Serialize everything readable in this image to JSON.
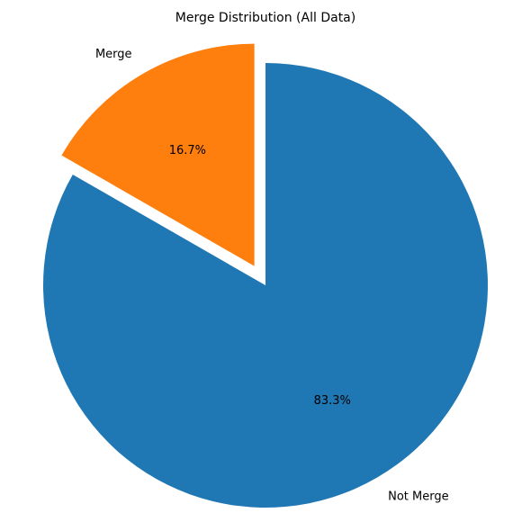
{
  "chart_data": {
    "type": "pie",
    "title": "Merge Distribution (All Data)",
    "slices": [
      {
        "label": "Not Merge",
        "percent_label": "83.3%",
        "value": 83.3,
        "color": "#1f77b4",
        "exploded": false
      },
      {
        "label": "Merge",
        "percent_label": "16.7%",
        "value": 16.7,
        "color": "#ff7f0e",
        "exploded": true
      }
    ],
    "legend": "none"
  }
}
